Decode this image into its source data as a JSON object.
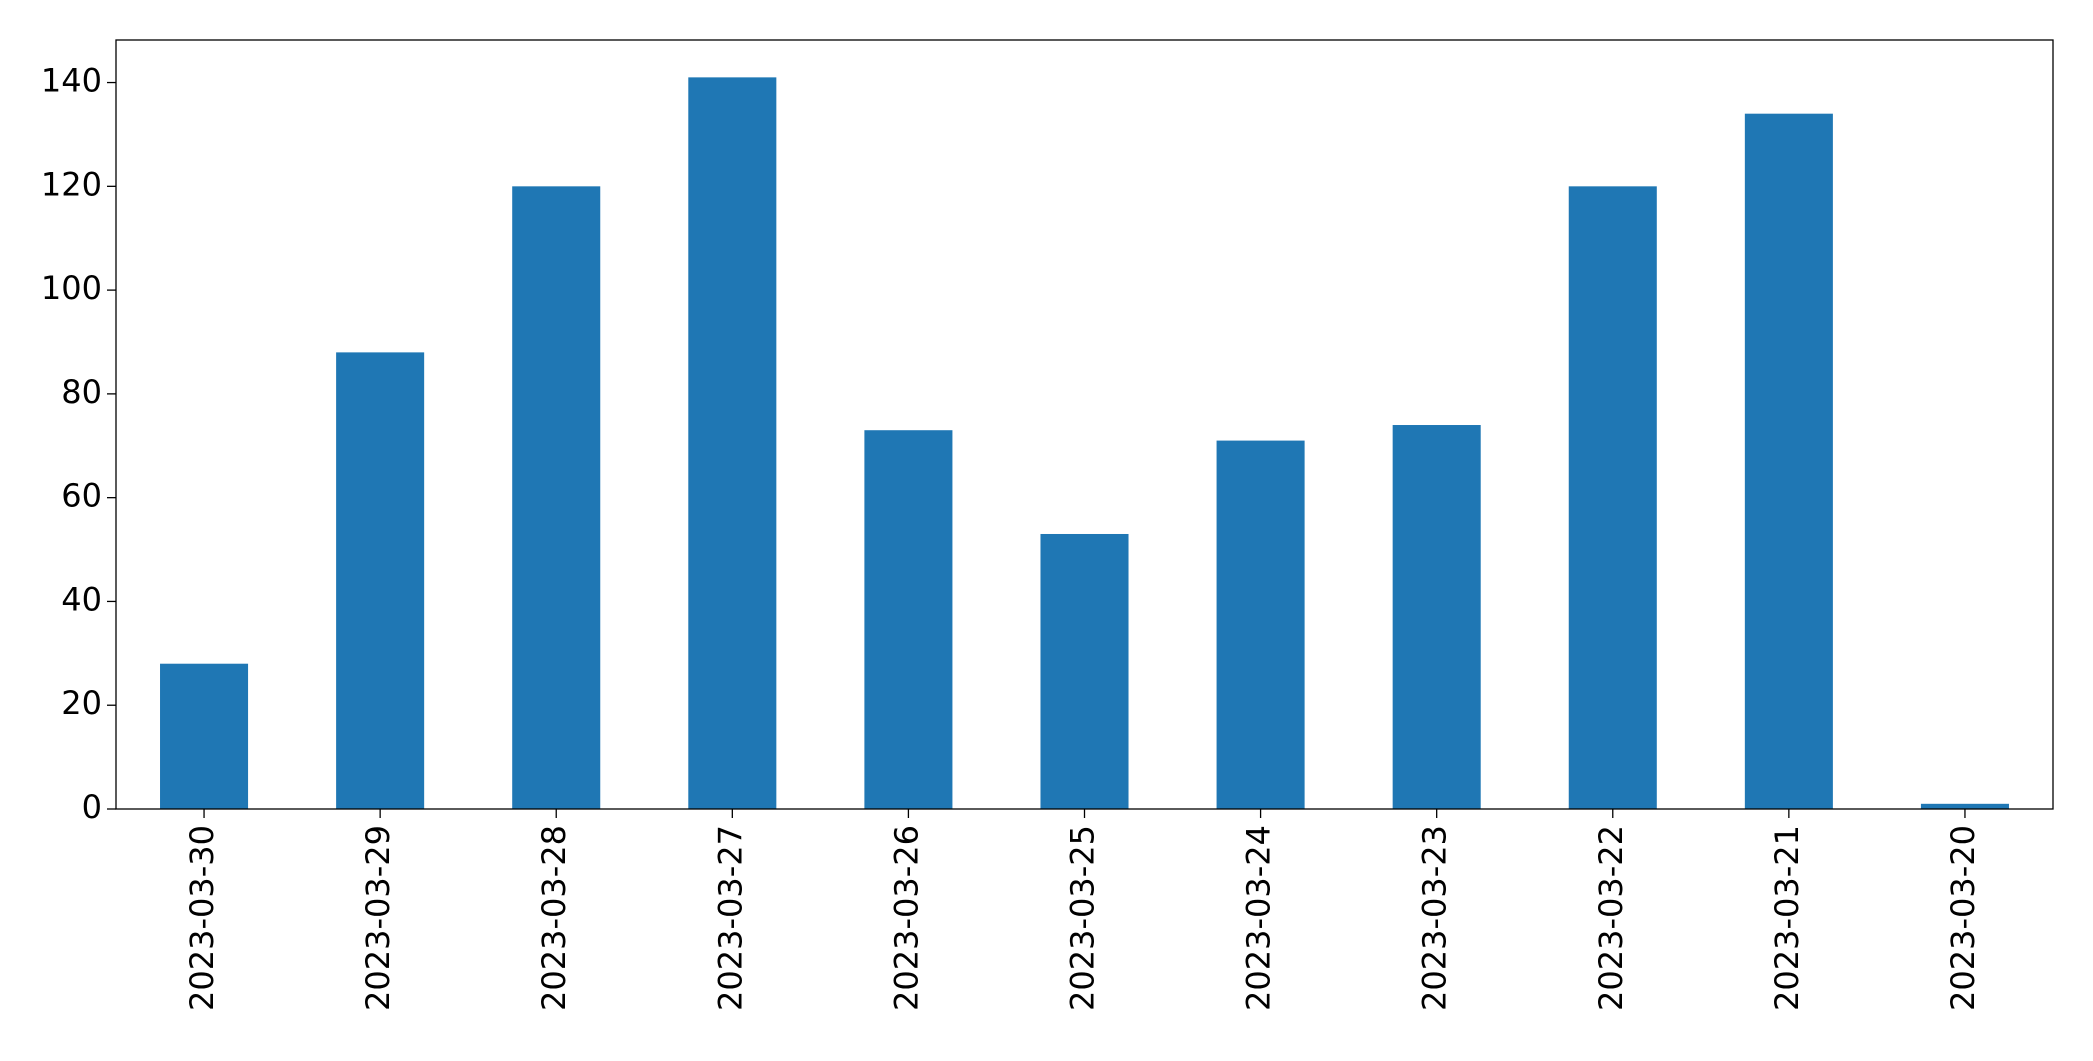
{
  "chart_data": {
    "type": "bar",
    "categories": [
      "2023-03-30",
      "2023-03-29",
      "2023-03-28",
      "2023-03-27",
      "2023-03-26",
      "2023-03-25",
      "2023-03-24",
      "2023-03-23",
      "2023-03-22",
      "2023-03-21",
      "2023-03-20"
    ],
    "values": [
      28,
      88,
      120,
      141,
      73,
      53,
      71,
      74,
      120,
      134,
      1
    ],
    "color": "#1f77b4",
    "ylim": [
      0,
      148.2
    ],
    "yticks": [
      0,
      20,
      40,
      60,
      80,
      100,
      120,
      140
    ],
    "grid": false
  }
}
